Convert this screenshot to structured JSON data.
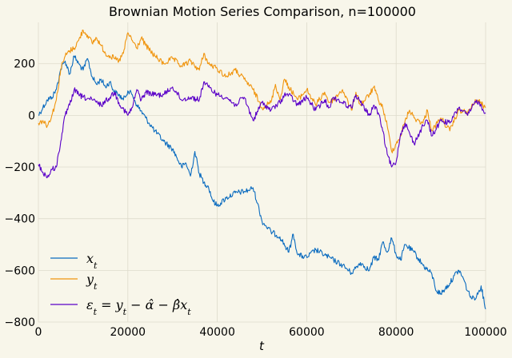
{
  "chart_data": {
    "type": "line",
    "title": "Brownian Motion Series Comparison, n=100000",
    "xlabel": "t",
    "ylabel": "",
    "xlim": [
      0,
      100000
    ],
    "ylim": [
      -800,
      360
    ],
    "x_ticks": [
      0,
      20000,
      40000,
      60000,
      80000,
      100000
    ],
    "x_tick_labels": [
      "0",
      "20000",
      "40000",
      "60000",
      "80000",
      "100000"
    ],
    "y_ticks": [
      -800,
      -600,
      -400,
      -200,
      0,
      200
    ],
    "y_tick_labels": [
      "−800",
      "−600",
      "−400",
      "−200",
      "0",
      "200"
    ],
    "grid": true,
    "legend_position": "lower-left",
    "colors": {
      "background": "#f8f6ea",
      "grid": "#dedbcc"
    },
    "series": [
      {
        "name": "x_t",
        "legend_label": "x",
        "legend_sub": "t",
        "color": "#0a6bbf",
        "x": [
          0,
          1000,
          2000,
          3000,
          4000,
          5000,
          6000,
          7000,
          8000,
          9000,
          10000,
          11000,
          12000,
          13000,
          14000,
          15000,
          16000,
          17000,
          18000,
          19000,
          20000,
          21000,
          22000,
          24000,
          26000,
          28000,
          30000,
          31000,
          32000,
          33000,
          34000,
          35000,
          36000,
          37000,
          38000,
          39000,
          40000,
          42000,
          44000,
          46000,
          47000,
          48000,
          49000,
          50000,
          52000,
          54000,
          56000,
          57000,
          58000,
          60000,
          62000,
          64000,
          66000,
          68000,
          70000,
          72000,
          74000,
          75000,
          76000,
          77000,
          78000,
          79000,
          80000,
          81000,
          82000,
          84000,
          86000,
          88000,
          89000,
          90000,
          91000,
          92000,
          93000,
          94000,
          95000,
          96000,
          97000,
          98000,
          99000,
          100000
        ],
        "y": [
          0,
          30,
          60,
          70,
          100,
          180,
          210,
          160,
          230,
          200,
          175,
          220,
          150,
          120,
          140,
          110,
          130,
          90,
          80,
          60,
          95,
          80,
          40,
          -10,
          -60,
          -100,
          -130,
          -165,
          -200,
          -185,
          -235,
          -140,
          -225,
          -260,
          -275,
          -330,
          -350,
          -320,
          -300,
          -295,
          -290,
          -280,
          -340,
          -410,
          -450,
          -470,
          -530,
          -460,
          -540,
          -550,
          -520,
          -540,
          -560,
          -580,
          -610,
          -570,
          -600,
          -550,
          -560,
          -490,
          -530,
          -475,
          -540,
          -560,
          -500,
          -530,
          -580,
          -615,
          -680,
          -690,
          -670,
          -650,
          -620,
          -600,
          -630,
          -680,
          -710,
          -700,
          -660,
          -750
        ]
      },
      {
        "name": "y_t",
        "legend_label": "y",
        "legend_sub": "t",
        "color": "#f0950f",
        "x": [
          0,
          1000,
          2000,
          3000,
          4000,
          5000,
          6000,
          7000,
          8000,
          9000,
          10000,
          11000,
          12000,
          13000,
          14000,
          15000,
          16000,
          17000,
          18000,
          19000,
          20000,
          21000,
          22000,
          23000,
          24000,
          26000,
          28000,
          30000,
          32000,
          34000,
          36000,
          37000,
          38000,
          40000,
          42000,
          44000,
          46000,
          48000,
          50000,
          52000,
          53000,
          54000,
          55000,
          56000,
          58000,
          60000,
          62000,
          64000,
          65000,
          66000,
          68000,
          70000,
          71000,
          72000,
          74000,
          75000,
          76000,
          77000,
          78000,
          79000,
          80000,
          81000,
          82000,
          83000,
          84000,
          86000,
          87000,
          88000,
          90000,
          92000,
          94000,
          96000,
          98000,
          100000
        ],
        "y": [
          -30,
          -20,
          -40,
          0,
          60,
          180,
          230,
          250,
          260,
          290,
          330,
          310,
          280,
          300,
          270,
          240,
          230,
          220,
          210,
          240,
          320,
          290,
          260,
          300,
          270,
          230,
          200,
          220,
          190,
          210,
          175,
          240,
          200,
          180,
          150,
          175,
          140,
          100,
          30,
          50,
          120,
          60,
          140,
          110,
          60,
          100,
          40,
          90,
          50,
          60,
          100,
          20,
          90,
          40,
          80,
          110,
          60,
          30,
          -40,
          -140,
          -110,
          -80,
          -20,
          20,
          -10,
          -30,
          20,
          -60,
          -10,
          -60,
          20,
          10,
          60,
          30
        ],
        "legend_color": "#f0950f"
      },
      {
        "name": "epsilon_t",
        "legend_label": "ε",
        "legend_sub": "t",
        "legend_rest": " = y",
        "legend_rest_sub": "t",
        "legend_tail": " − α̂ − β̂x",
        "legend_tail_sub": "t",
        "color": "#5a00c8",
        "x": [
          0,
          1000,
          2000,
          3000,
          4000,
          5000,
          6000,
          7000,
          8000,
          9000,
          10000,
          12000,
          14000,
          16000,
          17000,
          18000,
          20000,
          21000,
          22000,
          23000,
          24000,
          26000,
          28000,
          30000,
          32000,
          34000,
          36000,
          37000,
          38000,
          40000,
          42000,
          44000,
          46000,
          48000,
          50000,
          52000,
          54000,
          55000,
          56000,
          58000,
          60000,
          62000,
          64000,
          65000,
          66000,
          68000,
          70000,
          71000,
          72000,
          74000,
          75000,
          76000,
          77000,
          78000,
          79000,
          80000,
          81000,
          82000,
          84000,
          86000,
          87000,
          88000,
          90000,
          92000,
          94000,
          96000,
          98000,
          100000
        ],
        "y": [
          -190,
          -220,
          -240,
          -210,
          -200,
          -100,
          0,
          40,
          100,
          80,
          70,
          60,
          40,
          70,
          90,
          50,
          0,
          30,
          100,
          60,
          90,
          80,
          80,
          110,
          60,
          70,
          60,
          130,
          110,
          80,
          70,
          40,
          70,
          -20,
          50,
          20,
          50,
          80,
          80,
          40,
          70,
          20,
          60,
          30,
          70,
          50,
          30,
          80,
          50,
          0,
          40,
          10,
          -60,
          -150,
          -200,
          -180,
          -70,
          -30,
          -110,
          -40,
          -20,
          -80,
          -20,
          -30,
          30,
          0,
          60,
          10
        ]
      }
    ]
  }
}
